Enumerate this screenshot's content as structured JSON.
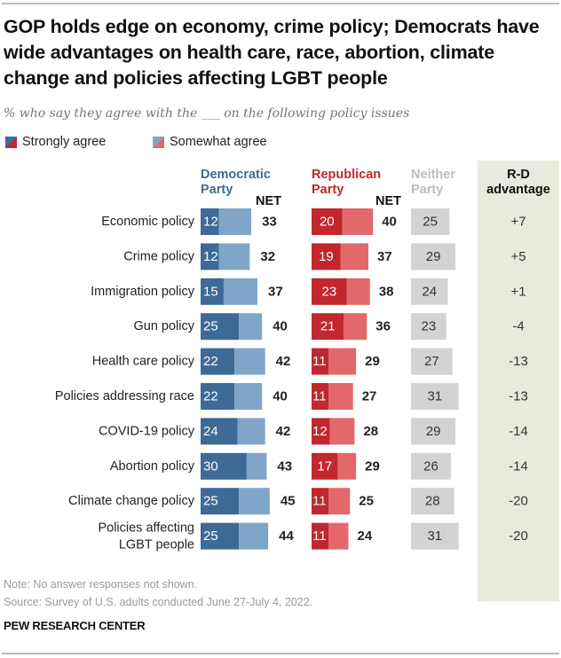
{
  "title": "GOP holds edge on economy, crime policy; Democrats have wide advantages on health care, race, abortion, climate change and policies affecting LGBT people",
  "subtitle": "% who say they agree with the ___ on the following policy issues",
  "legend": {
    "strong": "Strongly agree",
    "somewhat": "Somewhat agree"
  },
  "headers": {
    "dem_line1": "Democratic",
    "dem_line2": "Party",
    "rep_line1": "Republican",
    "rep_line2": "Party",
    "neither_line1": "Neither",
    "neither_line2": "Party",
    "net": "NET",
    "rd_line1": "R-D",
    "rd_line2": "advantage"
  },
  "colors": {
    "dem_strong": "#3d6a96",
    "dem_somewhat": "#7fa6c8",
    "rep_strong": "#c1272d",
    "rep_somewhat": "#e3686c",
    "neither": "#d3d3d3",
    "dem_header": "#3d6a96",
    "rep_header": "#c1272d",
    "neither_header": "#bdbdbd",
    "rd_bg": "#e9e9dd"
  },
  "chart_data": {
    "type": "bar",
    "orientation": "horizontal-stacked",
    "categories": [
      "Economic policy",
      "Crime policy",
      "Immigration policy",
      "Gun policy",
      "Health care policy",
      "Policies addressing race",
      "COVID-19 policy",
      "Abortion policy",
      "Climate change policy",
      "Policies affecting LGBT people"
    ],
    "dem_strong": [
      12,
      12,
      15,
      25,
      22,
      22,
      24,
      30,
      25,
      25
    ],
    "dem_net": [
      33,
      32,
      37,
      40,
      42,
      40,
      42,
      43,
      45,
      44
    ],
    "rep_strong": [
      20,
      19,
      23,
      21,
      11,
      11,
      12,
      17,
      11,
      11
    ],
    "rep_net": [
      40,
      37,
      38,
      36,
      29,
      27,
      28,
      29,
      25,
      24
    ],
    "neither": [
      25,
      29,
      24,
      23,
      27,
      31,
      29,
      26,
      28,
      31
    ],
    "rd_advantage": [
      "+7",
      "+5",
      "+1",
      "-4",
      "-13",
      "-13",
      "-14",
      "-14",
      "-20",
      "-20"
    ]
  },
  "note": "Note: No answer responses not shown.",
  "source": "Source: Survey of U.S. adults conducted June 27-July 4, 2022.",
  "brand": "PEW RESEARCH CENTER"
}
